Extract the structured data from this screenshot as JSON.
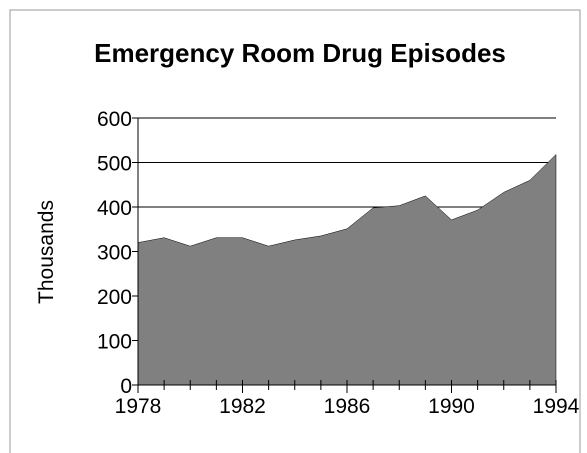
{
  "chart_data": {
    "type": "area",
    "title": "Emergency Room Drug Episodes",
    "y_label": "Thousands",
    "x": [
      1978,
      1979,
      1980,
      1981,
      1982,
      1983,
      1984,
      1985,
      1986,
      1987,
      1988,
      1989,
      1990,
      1991,
      1992,
      1993,
      1994
    ],
    "values": [
      320,
      331,
      312,
      331,
      331,
      312,
      326,
      335,
      351,
      398,
      403,
      425,
      371,
      393,
      433,
      460,
      518
    ],
    "color": "#808080",
    "xlim": [
      1978,
      1994
    ],
    "xticks": [
      1978,
      1982,
      1986,
      1990,
      1994
    ],
    "ylim": [
      0,
      600
    ],
    "yticks": [
      0,
      100,
      200,
      300,
      400,
      500,
      600
    ],
    "grid": true
  }
}
